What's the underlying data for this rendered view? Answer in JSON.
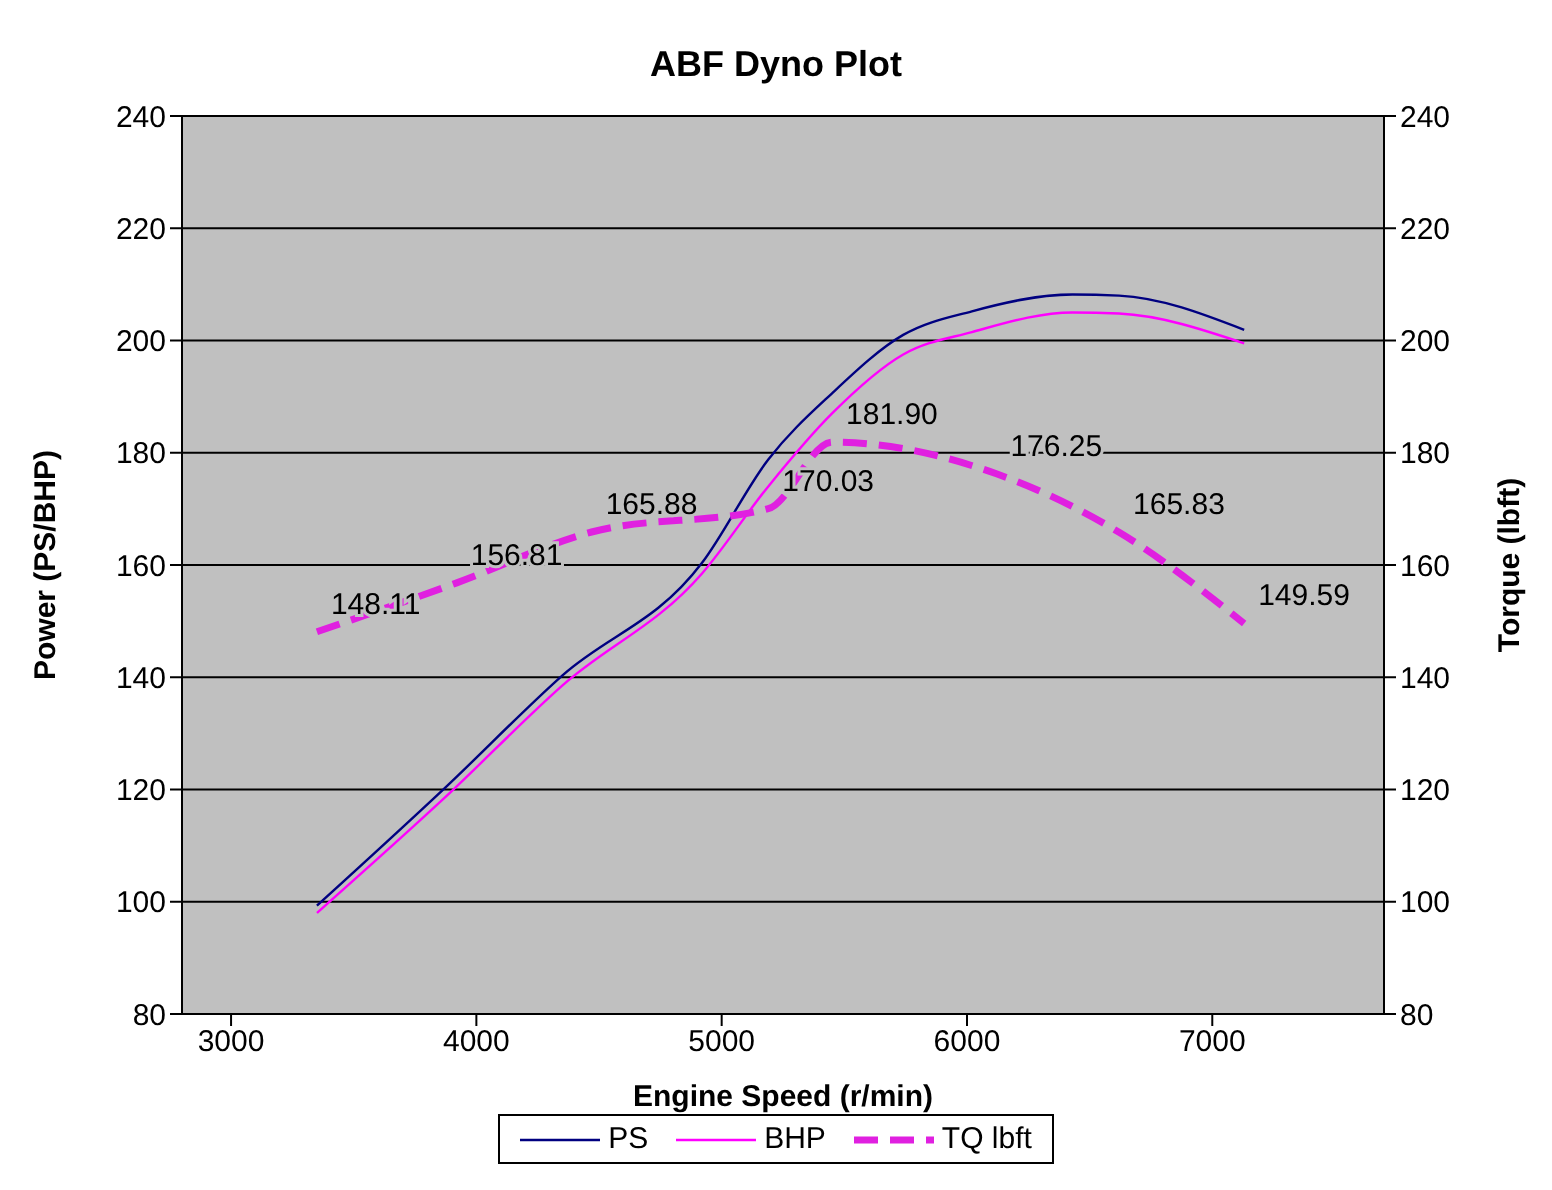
{
  "chart_data": {
    "type": "line",
    "title": "ABF Dyno Plot",
    "xlabel": "Engine Speed (r/min)",
    "ylabel": "Power (PS/BHP)",
    "y2label": "Torque (lbft)",
    "xlim": [
      2800,
      7700
    ],
    "xticks": [
      3000,
      4000,
      5000,
      6000,
      7000
    ],
    "ylim": [
      80,
      240
    ],
    "yticks": [
      80,
      100,
      120,
      140,
      160,
      180,
      200,
      220,
      240
    ],
    "y2lim": [
      80,
      240
    ],
    "y2ticks": [
      80,
      100,
      120,
      140,
      160,
      180,
      200,
      220,
      240
    ],
    "grid": "y",
    "legend": "bottom",
    "series": [
      {
        "name": "PS",
        "color": "#000080",
        "x": [
          3350,
          3870,
          4350,
          4920,
          5190,
          5450,
          5740,
          6020,
          6430,
          6620,
          7130
        ],
        "values": [
          99.3,
          120.2,
          140.3,
          160.4,
          178.8,
          190.6,
          201,
          205.2,
          208.2,
          208,
          201.9
        ]
      },
      {
        "name": "BHP",
        "color": "#ff00ff",
        "x": [
          3350,
          3870,
          4350,
          4920,
          5190,
          5450,
          5740,
          6020,
          6430,
          6620,
          7130
        ],
        "values": [
          98,
          118.5,
          138.5,
          158.5,
          174,
          187,
          197.5,
          201.5,
          205,
          204.8,
          199.5
        ]
      },
      {
        "name": "TQ lbft",
        "color": "#e020e0",
        "axis": "y2",
        "line_style": "dashed",
        "x": [
          3350,
          3920,
          4470,
          5190,
          5450,
          6120,
          6620,
          7130
        ],
        "values": [
          148.11,
          156.81,
          165.88,
          170.03,
          181.9,
          176.25,
          165.83,
          149.59
        ],
        "value_labels": [
          "148.11",
          "156.81",
          "165.88",
          "170.03",
          "181.90",
          "176.25",
          "165.83",
          "149.59"
        ]
      }
    ]
  }
}
